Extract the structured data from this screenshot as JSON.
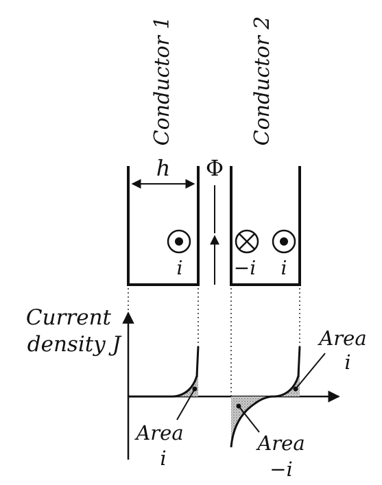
{
  "conductors": [
    {
      "label": "Conductor 1"
    },
    {
      "label": "Conductor 2"
    }
  ],
  "dimension_label": "h",
  "flux_label": "Φ",
  "currents": {
    "conductor1_current": "i",
    "conductor2_inner_current": "−i",
    "conductor2_outer_current": "i"
  },
  "graph": {
    "ylabel_line1": "Current",
    "ylabel_line2": "density J",
    "area_labels": [
      {
        "word": "Area",
        "value": "i"
      },
      {
        "word": "Area",
        "value": "−i"
      },
      {
        "word": "Area",
        "value": "i"
      }
    ]
  }
}
